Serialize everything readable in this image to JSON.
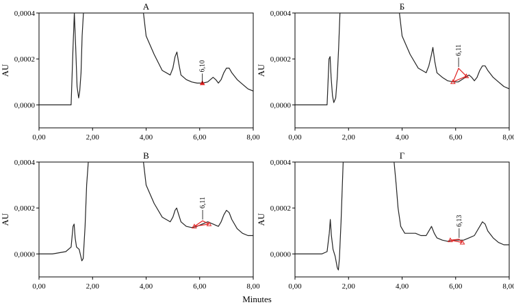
{
  "figure": {
    "xlabel": "Minutes"
  },
  "chart_data": [
    {
      "type": "line",
      "title": "А",
      "ylabel": "AU",
      "xlim": [
        0,
        8
      ],
      "ylim": [
        -0.0001,
        0.0004
      ],
      "xticks": [
        "0,00",
        "2,00",
        "4,00",
        "6,00",
        "8,00"
      ],
      "yticks": [
        "0,0000",
        "0,0002",
        "0,0004"
      ],
      "series": [
        {
          "x": [
            0,
            0.5,
            1.0,
            1.2,
            1.27,
            1.32,
            1.37,
            1.42,
            1.48,
            1.52,
            1.57,
            1.61,
            1.66,
            1.72,
            3.86,
            3.9,
            4.0,
            4.3,
            4.6,
            4.9,
            5.0,
            5.08,
            5.15,
            5.22,
            5.3,
            5.5,
            5.7,
            5.9,
            6.1,
            6.3,
            6.5,
            6.6,
            6.7,
            6.8,
            6.9,
            7.0,
            7.1,
            7.2,
            7.4,
            7.6,
            7.8,
            8.0
          ],
          "y": [
            0.0,
            0.0,
            0.0,
            0.0,
            0.00025,
            0.0004,
            0.00025,
            8e-05,
            3e-05,
            6e-05,
            0.00014,
            0.0003,
            0.0004,
            0.0004,
            0.0004,
            0.0004,
            0.0003,
            0.00022,
            0.00015,
            0.00013,
            0.00016,
            0.00021,
            0.00023,
            0.00018,
            0.00013,
            0.00011,
            0.0001,
            9.5e-05,
            9.5e-05,
            0.0001,
            0.00012,
            0.00011,
            9.5e-05,
            0.00011,
            0.00014,
            0.00016,
            0.00016,
            0.00014,
            0.00011,
            9e-05,
            7e-05,
            6e-05
          ]
        }
      ],
      "peak": {
        "label": "6,10",
        "x": 6.1,
        "y": 9.5e-05
      }
    },
    {
      "type": "line",
      "title": "Б",
      "ylabel": "AU",
      "xlim": [
        0,
        8
      ],
      "ylim": [
        -0.0001,
        0.0004
      ],
      "xticks": [
        "0,00",
        "2,00",
        "4,00",
        "6,00",
        "8,00"
      ],
      "yticks": [
        "0,0000",
        "0,0002",
        "0,0004"
      ],
      "series": [
        {
          "x": [
            0,
            0.5,
            1.0,
            1.2,
            1.27,
            1.31,
            1.35,
            1.4,
            1.45,
            1.52,
            1.58,
            1.63,
            1.68,
            1.72,
            3.86,
            3.9,
            4.0,
            4.3,
            4.6,
            4.9,
            5.0,
            5.1,
            5.15,
            5.22,
            5.3,
            5.5,
            5.7,
            5.9,
            6.1,
            6.3,
            6.5,
            6.6,
            6.7,
            6.8,
            6.9,
            7.0,
            7.1,
            7.2,
            7.4,
            7.6,
            7.8,
            8.0
          ],
          "y": [
            0.0,
            0.0,
            0.0,
            0.0,
            0.0002,
            0.00021,
            0.00012,
            4e-05,
            1e-05,
            3e-05,
            0.00012,
            0.00025,
            0.0004,
            0.0004,
            0.0004,
            0.0004,
            0.0003,
            0.00022,
            0.00016,
            0.00014,
            0.00017,
            0.00022,
            0.00025,
            0.00019,
            0.00014,
            0.00012,
            0.000105,
            0.0001,
            0.0001,
            0.000115,
            0.00013,
            0.00012,
            0.000105,
            0.00012,
            0.00015,
            0.00017,
            0.00017,
            0.00015,
            0.00012,
            0.0001,
            8e-05,
            7e-05
          ]
        }
      ],
      "peak": {
        "label": "6,11",
        "x": 6.11,
        "y": 0.000165,
        "start": {
          "x": 5.9,
          "y": 0.0001
        },
        "end": {
          "x": 6.4,
          "y": 0.000125
        }
      }
    },
    {
      "type": "line",
      "title": "В",
      "ylabel": "AU",
      "xlim": [
        0,
        8
      ],
      "ylim": [
        -0.0001,
        0.0004
      ],
      "xticks": [
        "0,00",
        "2,00",
        "4,00",
        "6,00",
        "8,00"
      ],
      "yticks": [
        "0,0000",
        "0,0002",
        "0,0004"
      ],
      "series": [
        {
          "x": [
            0,
            0.5,
            1.0,
            1.2,
            1.27,
            1.31,
            1.35,
            1.4,
            1.5,
            1.6,
            1.65,
            1.72,
            1.78,
            1.84,
            3.86,
            3.9,
            4.0,
            4.3,
            4.6,
            4.9,
            5.0,
            5.08,
            5.14,
            5.22,
            5.3,
            5.5,
            5.7,
            5.9,
            6.1,
            6.3,
            6.5,
            6.6,
            6.7,
            6.8,
            6.9,
            7.0,
            7.1,
            7.2,
            7.4,
            7.6,
            7.8,
            8.0
          ],
          "y": [
            0.0,
            0.0,
            1e-05,
            3e-05,
            0.00012,
            0.00013,
            7e-05,
            3e-05,
            2e-05,
            -3e-05,
            -2e-05,
            0.00012,
            0.0003,
            0.0004,
            0.0004,
            0.0004,
            0.0003,
            0.00022,
            0.00016,
            0.00014,
            0.00016,
            0.00019,
            0.0002,
            0.00017,
            0.00014,
            0.00012,
            0.000115,
            0.00012,
            0.00013,
            0.00014,
            0.00013,
            0.000125,
            0.00012,
            0.00014,
            0.00017,
            0.00019,
            0.00018,
            0.00015,
            0.00011,
            9e-05,
            8e-05,
            8e-05
          ]
        }
      ],
      "peak": {
        "label": "6,11",
        "x": 6.11,
        "y": 0.00015,
        "start": {
          "x": 5.8,
          "y": 0.00012
        },
        "end": {
          "x": 6.35,
          "y": 0.00013
        }
      }
    },
    {
      "type": "line",
      "title": "Г",
      "ylabel": "AU",
      "xlim": [
        0,
        8
      ],
      "ylim": [
        -0.0001,
        0.0004
      ],
      "xticks": [
        "0,00",
        "2,00",
        "4,00",
        "6,00",
        "8,00"
      ],
      "yticks": [
        "0,0000",
        "0,0002",
        "0,0004"
      ],
      "series": [
        {
          "x": [
            0,
            0.5,
            1.0,
            1.2,
            1.28,
            1.32,
            1.36,
            1.42,
            1.5,
            1.58,
            1.62,
            1.66,
            1.72,
            1.8,
            3.7,
            3.78,
            3.85,
            3.95,
            4.1,
            4.3,
            4.5,
            4.7,
            4.9,
            5.0,
            5.1,
            5.2,
            5.3,
            5.5,
            5.7,
            5.9,
            6.1,
            6.3,
            6.5,
            6.7,
            6.9,
            7.0,
            7.1,
            7.2,
            7.4,
            7.6,
            7.8,
            8.0
          ],
          "y": [
            0.0,
            0.0,
            0.0,
            1e-05,
            9e-05,
            0.00015,
            8e-05,
            2e-05,
            -1e-05,
            -6e-05,
            -7e-05,
            -2e-05,
            0.00014,
            0.0004,
            0.0004,
            0.0003,
            0.0002,
            0.00012,
            9e-05,
            9e-05,
            9e-05,
            8e-05,
            8e-05,
            0.0001,
            0.00012,
            9e-05,
            7e-05,
            6e-05,
            5.5e-05,
            6e-05,
            6e-05,
            6e-05,
            7e-05,
            8e-05,
            0.00012,
            0.00014,
            0.00013,
            0.0001,
            7e-05,
            5e-05,
            4e-05,
            4e-05
          ]
        }
      ],
      "peak": {
        "label": "6,13",
        "x": 6.13,
        "y": 7e-05,
        "start": {
          "x": 5.8,
          "y": 6e-05
        },
        "end": {
          "x": 6.25,
          "y": 5e-05
        }
      }
    }
  ]
}
